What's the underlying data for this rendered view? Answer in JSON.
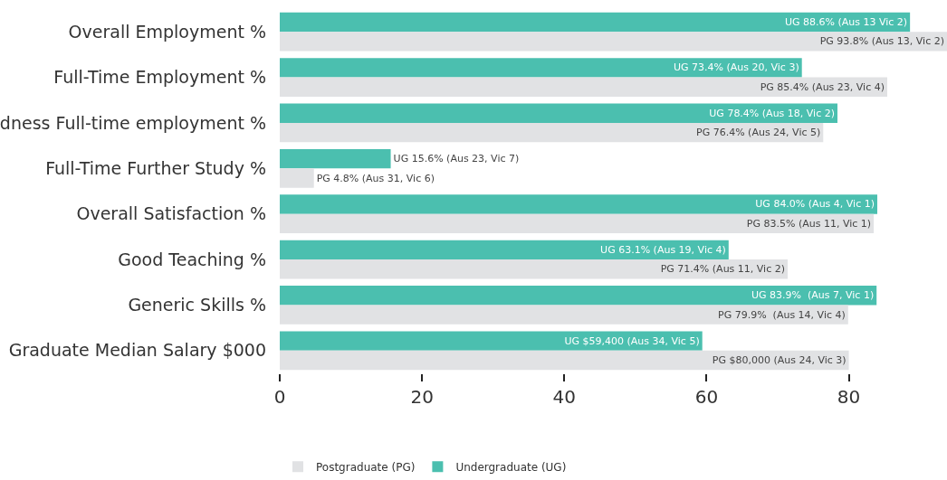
{
  "chart_data": {
    "type": "bar",
    "orientation": "horizontal",
    "categories": [
      "Overall Employment %",
      "Full-Time Employment %",
      "dness Full-time employment %",
      "Full-Time Further Study %",
      "Overall Satisfaction %",
      "Good Teaching %",
      "Generic Skills %",
      "Graduate Median Salary $000"
    ],
    "series": [
      {
        "name": "Undergraduate (UG)",
        "color": "#4bbfaf",
        "values": [
          88.6,
          73.4,
          78.4,
          15.6,
          84.0,
          63.1,
          83.9,
          59.4
        ],
        "value_labels": [
          "UG 88.6% (Aus 13 Vic 2)",
          "UG 73.4% (Aus 20, Vic 3)",
          "UG 78.4% (Aus 18, Vic 2)",
          "UG 15.6% (Aus 23, Vic 7)",
          "UG 84.0% (Aus 4, Vic 1)",
          "UG 63.1% (Aus 19, Vic 4)",
          "UG 83.9%  (Aus 7, Vic 1)",
          "UG $59,400 (Aus 34, Vic 5)"
        ]
      },
      {
        "name": "Postgraduate (PG)",
        "color": "#e1e2e4",
        "values": [
          93.8,
          85.4,
          76.4,
          4.8,
          83.5,
          71.4,
          79.9,
          80
        ],
        "value_labels": [
          "PG 93.8% (Aus 13, Vic 2)",
          "PG 85.4% (Aus 23, Vic 4)",
          "PG 76.4% (Aus 24, Vic 5)",
          "PG 4.8% (Aus 31, Vic 6)",
          "PG 83.5% (Aus 11, Vic 1)",
          "PG 71.4% (Aus 11, Vic 2)",
          "PG 79.9%  (Aus 14, Vic 4)",
          "PG $80,000 (Aus 24, Vic 3)"
        ]
      }
    ],
    "xlim": [
      0,
      93.8
    ],
    "xticks": [
      0,
      20,
      40,
      60,
      80
    ],
    "legend": "bottom"
  }
}
